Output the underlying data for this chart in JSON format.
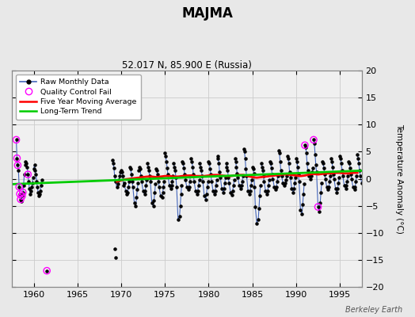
{
  "title": "MAJMA",
  "subtitle": "52.017 N, 85.900 E (Russia)",
  "ylabel": "Temperature Anomaly (°C)",
  "credit": "Berkeley Earth",
  "ylim": [
    -20,
    20
  ],
  "xlim": [
    1957.5,
    1997.5
  ],
  "xticks": [
    1960,
    1965,
    1970,
    1975,
    1980,
    1985,
    1990,
    1995
  ],
  "yticks": [
    -20,
    -15,
    -10,
    -5,
    0,
    5,
    10,
    15,
    20
  ],
  "bg_color": "#e8e8e8",
  "plot_bg_color": "#f0f0f0",
  "grid_color": "#cccccc",
  "raw_line_color": "#4466bb",
  "raw_dot_color": "#000000",
  "qc_fail_color": "#ff00ff",
  "moving_avg_color": "#ff0000",
  "trend_color": "#00cc00",
  "segments": [
    [
      [
        1958.0,
        7.2
      ],
      [
        1958.083,
        3.8
      ],
      [
        1958.167,
        2.5
      ],
      [
        1958.25,
        1.5
      ],
      [
        1958.333,
        -1.5
      ],
      [
        1958.417,
        -2.8
      ],
      [
        1958.5,
        -3.8
      ],
      [
        1958.583,
        -4.2
      ],
      [
        1958.667,
        -3.2
      ],
      [
        1958.75,
        -2.5
      ],
      [
        1958.833,
        -1.2
      ],
      [
        1958.917,
        0.8
      ]
    ],
    [
      [
        1959.0,
        2.5
      ],
      [
        1959.083,
        3.2
      ],
      [
        1959.167,
        2.8
      ],
      [
        1959.25,
        2.2
      ],
      [
        1959.333,
        0.8
      ],
      [
        1959.417,
        -0.5
      ],
      [
        1959.5,
        -1.8
      ],
      [
        1959.583,
        -2.8
      ],
      [
        1959.667,
        -2.2
      ],
      [
        1959.75,
        -1.5
      ],
      [
        1959.833,
        -0.8
      ],
      [
        1959.917,
        0.2
      ]
    ],
    [
      [
        1960.0,
        1.8
      ],
      [
        1960.083,
        2.5
      ],
      [
        1960.167,
        1.5
      ],
      [
        1960.25,
        0.8
      ],
      [
        1960.333,
        -0.5
      ],
      [
        1960.417,
        -1.5
      ],
      [
        1960.5,
        -2.5
      ],
      [
        1960.583,
        -3.2
      ],
      [
        1960.667,
        -2.8
      ],
      [
        1960.75,
        -2.2
      ],
      [
        1960.833,
        -1.2
      ],
      [
        1960.917,
        -0.2
      ]
    ],
    [
      [
        1969.0,
        3.5
      ],
      [
        1969.083,
        2.8
      ],
      [
        1969.167,
        2.0
      ],
      [
        1969.25,
        0.5
      ],
      [
        1969.333,
        -0.5
      ],
      [
        1969.5,
        -1.5
      ],
      [
        1969.667,
        -1.0
      ],
      [
        1969.75,
        -0.2
      ],
      [
        1969.833,
        0.5
      ],
      [
        1969.917,
        1.2
      ]
    ],
    [
      [
        1970.0,
        1.5
      ],
      [
        1970.083,
        1.2
      ],
      [
        1970.167,
        0.5
      ],
      [
        1970.25,
        -1.2
      ],
      [
        1970.333,
        -0.8
      ],
      [
        1970.5,
        -2.2
      ],
      [
        1970.667,
        -2.8
      ],
      [
        1970.75,
        -2.5
      ],
      [
        1970.833,
        -1.5
      ],
      [
        1970.917,
        -0.5
      ]
    ],
    [
      [
        1971.0,
        2.2
      ],
      [
        1971.083,
        1.8
      ],
      [
        1971.167,
        0.8
      ],
      [
        1971.25,
        -0.5
      ],
      [
        1971.333,
        -1.5
      ],
      [
        1971.5,
        -4.5
      ],
      [
        1971.667,
        -5.0
      ],
      [
        1971.75,
        -3.5
      ],
      [
        1971.833,
        -2.0
      ],
      [
        1971.917,
        -0.8
      ]
    ],
    [
      [
        1972.0,
        1.5
      ],
      [
        1972.083,
        2.2
      ],
      [
        1972.167,
        1.8
      ],
      [
        1972.25,
        0.5
      ],
      [
        1972.333,
        -0.5
      ],
      [
        1972.5,
        -2.2
      ],
      [
        1972.667,
        -2.8
      ],
      [
        1972.75,
        -2.2
      ],
      [
        1972.833,
        -1.2
      ],
      [
        1972.917,
        -0.2
      ]
    ],
    [
      [
        1973.0,
        2.8
      ],
      [
        1973.083,
        2.2
      ],
      [
        1973.167,
        1.5
      ],
      [
        1973.25,
        0.5
      ],
      [
        1973.333,
        -0.5
      ],
      [
        1973.5,
        -4.5
      ],
      [
        1973.667,
        -5.0
      ],
      [
        1973.75,
        -4.0
      ],
      [
        1973.833,
        -2.5
      ],
      [
        1973.917,
        -1.0
      ]
    ],
    [
      [
        1974.0,
        1.8
      ],
      [
        1974.083,
        1.5
      ],
      [
        1974.167,
        0.8
      ],
      [
        1974.25,
        -0.5
      ],
      [
        1974.333,
        -1.5
      ],
      [
        1974.5,
        -3.2
      ],
      [
        1974.667,
        -3.5
      ],
      [
        1974.75,
        -2.5
      ],
      [
        1974.833,
        -1.5
      ],
      [
        1974.917,
        -0.5
      ]
    ],
    [
      [
        1975.0,
        4.8
      ],
      [
        1975.083,
        4.2
      ],
      [
        1975.167,
        3.2
      ],
      [
        1975.25,
        2.0
      ],
      [
        1975.333,
        0.8
      ],
      [
        1975.5,
        -1.2
      ],
      [
        1975.667,
        -1.8
      ],
      [
        1975.75,
        -1.2
      ],
      [
        1975.833,
        -0.5
      ],
      [
        1975.917,
        0.5
      ]
    ],
    [
      [
        1976.0,
        2.8
      ],
      [
        1976.083,
        2.2
      ],
      [
        1976.167,
        1.5
      ],
      [
        1976.25,
        0.2
      ],
      [
        1976.333,
        -1.5
      ],
      [
        1976.5,
        -7.5
      ],
      [
        1976.667,
        -7.0
      ],
      [
        1976.75,
        -5.0
      ],
      [
        1976.833,
        -2.8
      ],
      [
        1976.917,
        -1.2
      ]
    ],
    [
      [
        1977.0,
        3.2
      ],
      [
        1977.083,
        2.8
      ],
      [
        1977.167,
        2.0
      ],
      [
        1977.25,
        0.8
      ],
      [
        1977.333,
        -0.2
      ],
      [
        1977.5,
        -1.5
      ],
      [
        1977.667,
        -2.0
      ],
      [
        1977.75,
        -1.5
      ],
      [
        1977.833,
        -0.5
      ],
      [
        1977.917,
        0.5
      ]
    ],
    [
      [
        1978.0,
        3.8
      ],
      [
        1978.083,
        3.2
      ],
      [
        1978.167,
        2.2
      ],
      [
        1978.25,
        0.8
      ],
      [
        1978.333,
        -0.5
      ],
      [
        1978.5,
        -2.2
      ],
      [
        1978.667,
        -2.8
      ],
      [
        1978.75,
        -2.2
      ],
      [
        1978.833,
        -1.2
      ],
      [
        1978.917,
        -0.2
      ]
    ],
    [
      [
        1979.0,
        2.8
      ],
      [
        1979.083,
        2.2
      ],
      [
        1979.167,
        1.5
      ],
      [
        1979.25,
        0.5
      ],
      [
        1979.333,
        -0.5
      ],
      [
        1979.5,
        -3.2
      ],
      [
        1979.667,
        -3.8
      ],
      [
        1979.75,
        -2.8
      ],
      [
        1979.833,
        -1.5
      ],
      [
        1979.917,
        -0.5
      ]
    ],
    [
      [
        1980.0,
        3.2
      ],
      [
        1980.083,
        2.8
      ],
      [
        1980.167,
        1.8
      ],
      [
        1980.25,
        0.8
      ],
      [
        1980.333,
        -0.5
      ],
      [
        1980.5,
        -2.2
      ],
      [
        1980.667,
        -2.8
      ],
      [
        1980.75,
        -2.2
      ],
      [
        1980.833,
        -1.2
      ],
      [
        1980.917,
        -0.2
      ]
    ],
    [
      [
        1981.0,
        4.2
      ],
      [
        1981.083,
        3.8
      ],
      [
        1981.167,
        2.8
      ],
      [
        1981.25,
        1.2
      ],
      [
        1981.333,
        0.2
      ],
      [
        1981.5,
        -1.8
      ],
      [
        1981.667,
        -2.5
      ],
      [
        1981.75,
        -1.8
      ],
      [
        1981.833,
        -0.8
      ],
      [
        1981.917,
        0.2
      ]
    ],
    [
      [
        1982.0,
        2.8
      ],
      [
        1982.083,
        2.2
      ],
      [
        1982.167,
        1.5
      ],
      [
        1982.25,
        0.2
      ],
      [
        1982.333,
        -0.8
      ],
      [
        1982.5,
        -2.5
      ],
      [
        1982.667,
        -3.0
      ],
      [
        1982.75,
        -2.2
      ],
      [
        1982.833,
        -1.2
      ],
      [
        1982.917,
        -0.2
      ]
    ],
    [
      [
        1983.0,
        3.8
      ],
      [
        1983.083,
        3.2
      ],
      [
        1983.167,
        2.2
      ],
      [
        1983.25,
        1.0
      ],
      [
        1983.333,
        0.2
      ],
      [
        1983.5,
        -1.2
      ],
      [
        1983.667,
        -1.8
      ],
      [
        1983.75,
        -1.2
      ],
      [
        1983.833,
        -0.5
      ],
      [
        1983.917,
        0.5
      ]
    ],
    [
      [
        1984.0,
        5.5
      ],
      [
        1984.083,
        5.0
      ],
      [
        1984.167,
        3.8
      ],
      [
        1984.25,
        1.8
      ],
      [
        1984.333,
        0.5
      ],
      [
        1984.5,
        -2.2
      ],
      [
        1984.667,
        -2.8
      ],
      [
        1984.75,
        -2.2
      ],
      [
        1984.833,
        -1.2
      ],
      [
        1984.917,
        -0.2
      ]
    ],
    [
      [
        1985.0,
        2.2
      ],
      [
        1985.083,
        1.8
      ],
      [
        1985.167,
        1.0
      ],
      [
        1985.25,
        -1.5
      ],
      [
        1985.333,
        -5.2
      ],
      [
        1985.5,
        -8.2
      ],
      [
        1985.667,
        -7.5
      ],
      [
        1985.75,
        -5.5
      ],
      [
        1985.833,
        -3.2
      ],
      [
        1985.917,
        -1.2
      ]
    ],
    [
      [
        1986.0,
        2.8
      ],
      [
        1986.083,
        2.2
      ],
      [
        1986.167,
        1.5
      ],
      [
        1986.25,
        0.5
      ],
      [
        1986.333,
        -0.5
      ],
      [
        1986.5,
        -2.2
      ],
      [
        1986.667,
        -2.8
      ],
      [
        1986.75,
        -2.2
      ],
      [
        1986.833,
        -1.2
      ],
      [
        1986.917,
        -0.2
      ]
    ],
    [
      [
        1987.0,
        3.2
      ],
      [
        1987.083,
        2.8
      ],
      [
        1987.167,
        2.0
      ],
      [
        1987.25,
        0.8
      ],
      [
        1987.333,
        0.0
      ],
      [
        1987.5,
        -1.5
      ],
      [
        1987.667,
        -2.0
      ],
      [
        1987.75,
        -1.5
      ],
      [
        1987.833,
        -0.5
      ],
      [
        1987.917,
        0.5
      ]
    ],
    [
      [
        1988.0,
        5.2
      ],
      [
        1988.083,
        4.8
      ],
      [
        1988.167,
        3.2
      ],
      [
        1988.25,
        1.5
      ],
      [
        1988.333,
        0.5
      ],
      [
        1988.5,
        -0.8
      ],
      [
        1988.667,
        -1.2
      ],
      [
        1988.75,
        -0.8
      ],
      [
        1988.833,
        -0.2
      ],
      [
        1988.917,
        0.5
      ]
    ],
    [
      [
        1989.0,
        4.2
      ],
      [
        1989.083,
        3.8
      ],
      [
        1989.167,
        2.8
      ],
      [
        1989.25,
        1.2
      ],
      [
        1989.333,
        0.2
      ],
      [
        1989.5,
        -1.8
      ],
      [
        1989.667,
        -2.5
      ],
      [
        1989.75,
        -1.8
      ],
      [
        1989.833,
        -0.8
      ],
      [
        1989.917,
        0.2
      ]
    ],
    [
      [
        1990.0,
        3.8
      ],
      [
        1990.083,
        3.2
      ],
      [
        1990.167,
        2.2
      ],
      [
        1990.25,
        0.8
      ],
      [
        1990.333,
        -0.5
      ],
      [
        1990.5,
        -5.8
      ],
      [
        1990.667,
        -6.5
      ],
      [
        1990.75,
        -4.8
      ],
      [
        1990.833,
        -2.8
      ],
      [
        1990.917,
        -1.0
      ]
    ],
    [
      [
        1991.0,
        6.2
      ],
      [
        1991.083,
        5.8
      ],
      [
        1991.167,
        4.8
      ],
      [
        1991.25,
        2.8
      ],
      [
        1991.333,
        1.5
      ],
      [
        1991.5,
        0.5
      ],
      [
        1991.667,
        0.0
      ],
      [
        1991.75,
        0.5
      ],
      [
        1991.833,
        1.2
      ],
      [
        1991.917,
        2.0
      ]
    ],
    [
      [
        1992.0,
        7.2
      ],
      [
        1992.083,
        6.5
      ],
      [
        1992.167,
        4.5
      ],
      [
        1992.25,
        2.5
      ],
      [
        1992.333,
        1.2
      ],
      [
        1992.5,
        -5.2
      ],
      [
        1992.667,
        -6.0
      ],
      [
        1992.75,
        -4.5
      ],
      [
        1992.833,
        -2.5
      ],
      [
        1992.917,
        -0.8
      ]
    ],
    [
      [
        1993.0,
        3.2
      ],
      [
        1993.083,
        2.8
      ],
      [
        1993.167,
        2.0
      ],
      [
        1993.25,
        0.8
      ],
      [
        1993.333,
        0.0
      ],
      [
        1993.5,
        -1.5
      ],
      [
        1993.667,
        -2.0
      ],
      [
        1993.75,
        -1.5
      ],
      [
        1993.833,
        -0.5
      ],
      [
        1993.917,
        0.5
      ]
    ],
    [
      [
        1994.0,
        3.8
      ],
      [
        1994.083,
        3.2
      ],
      [
        1994.167,
        2.2
      ],
      [
        1994.25,
        0.8
      ],
      [
        1994.333,
        0.0
      ],
      [
        1994.5,
        -1.8
      ],
      [
        1994.667,
        -2.5
      ],
      [
        1994.75,
        -1.8
      ],
      [
        1994.833,
        -0.8
      ],
      [
        1994.917,
        0.2
      ]
    ],
    [
      [
        1995.0,
        4.2
      ],
      [
        1995.083,
        3.8
      ],
      [
        1995.167,
        2.8
      ],
      [
        1995.25,
        1.5
      ],
      [
        1995.333,
        0.5
      ],
      [
        1995.5,
        -1.2
      ],
      [
        1995.667,
        -1.8
      ],
      [
        1995.75,
        -1.2
      ],
      [
        1995.833,
        -0.5
      ],
      [
        1995.917,
        0.5
      ]
    ],
    [
      [
        1996.0,
        3.2
      ],
      [
        1996.083,
        2.8
      ],
      [
        1996.167,
        2.0
      ],
      [
        1996.25,
        0.8
      ],
      [
        1996.333,
        0.0
      ],
      [
        1996.5,
        -1.5
      ],
      [
        1996.667,
        -2.0
      ],
      [
        1996.75,
        -1.5
      ],
      [
        1996.833,
        -0.5
      ],
      [
        1996.917,
        0.5
      ]
    ],
    [
      [
        1997.0,
        4.5
      ],
      [
        1997.083,
        3.8
      ],
      [
        1997.167,
        2.8
      ],
      [
        1997.25,
        1.5
      ],
      [
        1997.333,
        0.5
      ],
      [
        1997.5,
        -0.8
      ]
    ]
  ],
  "isolated_points": [
    [
      1961.5,
      -17.0
    ],
    [
      1969.25,
      -13.0
    ],
    [
      1969.333,
      -14.5
    ]
  ],
  "qc_fail_points": [
    [
      1958.0,
      7.2
    ],
    [
      1958.083,
      3.8
    ],
    [
      1958.167,
      2.5
    ],
    [
      1958.333,
      -1.5
    ],
    [
      1958.417,
      -2.8
    ],
    [
      1958.5,
      -3.8
    ],
    [
      1958.667,
      -3.2
    ],
    [
      1958.75,
      -2.5
    ],
    [
      1959.333,
      0.8
    ],
    [
      1961.5,
      -17.0
    ],
    [
      1991.0,
      6.2
    ],
    [
      1992.0,
      7.2
    ],
    [
      1992.5,
      -5.2
    ]
  ],
  "moving_avg": [
    [
      1969.5,
      -0.5
    ],
    [
      1970.0,
      -0.3
    ],
    [
      1970.5,
      -0.1
    ],
    [
      1971.0,
      0.0
    ],
    [
      1971.5,
      0.1
    ],
    [
      1972.0,
      0.2
    ],
    [
      1972.5,
      0.3
    ],
    [
      1973.0,
      0.4
    ],
    [
      1973.5,
      0.4
    ],
    [
      1974.0,
      0.3
    ],
    [
      1974.5,
      0.4
    ],
    [
      1975.0,
      0.5
    ],
    [
      1975.5,
      0.5
    ],
    [
      1976.0,
      0.4
    ],
    [
      1976.5,
      0.4
    ],
    [
      1977.0,
      0.5
    ],
    [
      1977.5,
      0.6
    ],
    [
      1978.0,
      0.6
    ],
    [
      1978.5,
      0.5
    ],
    [
      1979.0,
      0.5
    ],
    [
      1979.5,
      0.5
    ],
    [
      1980.0,
      0.6
    ],
    [
      1980.5,
      0.7
    ],
    [
      1981.0,
      0.7
    ],
    [
      1981.5,
      0.6
    ],
    [
      1982.0,
      0.5
    ],
    [
      1982.5,
      0.5
    ],
    [
      1983.0,
      0.6
    ],
    [
      1983.5,
      0.7
    ],
    [
      1984.0,
      0.7
    ],
    [
      1984.5,
      0.5
    ],
    [
      1985.0,
      0.3
    ],
    [
      1985.5,
      0.2
    ],
    [
      1986.0,
      0.3
    ],
    [
      1986.5,
      0.4
    ],
    [
      1987.0,
      0.5
    ],
    [
      1987.5,
      0.6
    ],
    [
      1988.0,
      0.7
    ],
    [
      1988.5,
      0.8
    ],
    [
      1989.0,
      0.8
    ],
    [
      1989.5,
      0.7
    ],
    [
      1990.0,
      0.6
    ],
    [
      1990.5,
      0.5
    ],
    [
      1991.0,
      0.6
    ],
    [
      1991.5,
      0.8
    ],
    [
      1992.0,
      0.9
    ],
    [
      1992.5,
      0.8
    ],
    [
      1993.0,
      0.9
    ],
    [
      1993.5,
      1.0
    ],
    [
      1994.0,
      1.0
    ],
    [
      1994.5,
      1.1
    ],
    [
      1995.0,
      1.1
    ],
    [
      1995.5,
      1.0
    ],
    [
      1996.0,
      1.0
    ],
    [
      1996.5,
      1.1
    ],
    [
      1997.0,
      1.1
    ]
  ],
  "trend_x": [
    1957.5,
    1997.5
  ],
  "trend_y": [
    -1.0,
    1.5
  ]
}
